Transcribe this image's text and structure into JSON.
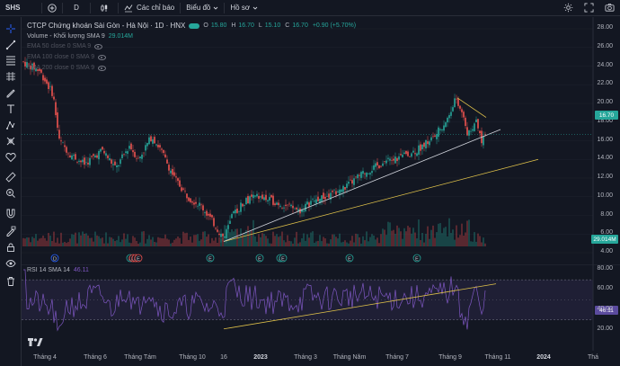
{
  "toolbar": {
    "symbol": "SHS",
    "interval": "D",
    "indicators_label": "Các chỉ báo",
    "charts_label": "Biểu đồ",
    "profile_label": "Hồ sơ"
  },
  "legend": {
    "title": "CTCP Chứng khoán Sài Gòn - Hà Nội · 1D · HNX",
    "ohlc": {
      "o_label": "O",
      "o": "15.80",
      "h_label": "H",
      "h": "16.70",
      "l_label": "L",
      "l": "15.10",
      "c_label": "C",
      "c": "16.70",
      "change": "+0.90 (+5.70%)"
    },
    "volume_label": "Volume - Khối lượng SMA 9",
    "volume_value": "29.014M",
    "ema_lines": [
      "EMA 50 close 0 SMA 9",
      "EMA 100 close 0 SMA 9",
      "EMA 200 close 0 SMA 9"
    ],
    "rsi_label": "RSI 14 SMA 14",
    "rsi_value": "46.11"
  },
  "price_axis": {
    "ticks": [
      "28.00",
      "26.00",
      "24.00",
      "22.00",
      "20.00",
      "18.00",
      "16.00",
      "14.00",
      "12.00",
      "10.00",
      "8.00",
      "6.00",
      "4.00"
    ],
    "last_price": "16.70",
    "volume_tag": "29.014M"
  },
  "rsi_axis": {
    "ticks": [
      "80.00",
      "60.00",
      "40.00",
      "20.00"
    ],
    "last_value": "46.11"
  },
  "x_axis": {
    "labels": [
      "Tháng 4",
      "Tháng 6",
      "Tháng Tám",
      "Tháng 10",
      "16",
      "2023",
      "Tháng 3",
      "Tháng Năm",
      "Tháng 7",
      "Tháng 9",
      "Tháng 11",
      "2024",
      "Thá"
    ]
  },
  "colors": {
    "up": "#26a69a",
    "down": "#ef5350",
    "rsi": "#7e57c2",
    "trend_yellow": "#e0c24a",
    "trend_white": "#d1d4dc",
    "background": "#131722",
    "last_price_tag": "#26a69a",
    "rsi_tag": "#5b4b9e"
  },
  "icons": [
    "crosshair-icon",
    "trendline-icon",
    "fib-icon",
    "brush-icon",
    "text-icon",
    "pattern-icon",
    "prediction-icon",
    "favorite-icon",
    "ruler-icon",
    "zoom-icon",
    "magnet-icon",
    "lock-icon",
    "eye-icon",
    "trash-icon"
  ],
  "event_markers": [
    "D",
    "E",
    "D",
    "E",
    "E",
    "E",
    "E",
    "E",
    "E",
    "E",
    "E"
  ]
}
